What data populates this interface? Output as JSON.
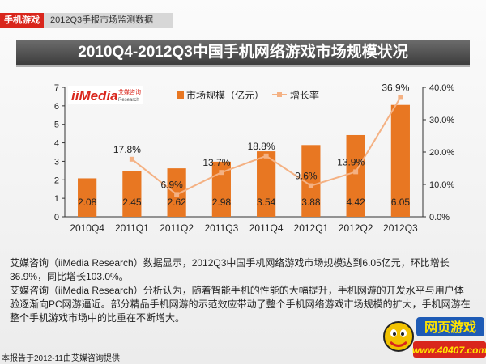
{
  "header": {
    "tag": "手机游戏",
    "subtag": "2012Q3手报市场监测数据"
  },
  "title": "2010Q4-2012Q3中国手机网络游戏市场规模状况",
  "logo": {
    "brand": "iiMedia",
    "cn": "艾媒咨询",
    "en": "Research"
  },
  "chart_data": {
    "type": "bar",
    "categories": [
      "2010Q4",
      "2011Q1",
      "2011Q2",
      "2011Q3",
      "2011Q4",
      "2012Q1",
      "2012Q2",
      "2012Q3"
    ],
    "series": [
      {
        "name": "市场规模（亿元）",
        "type": "bar",
        "color": "#e87722",
        "values": [
          2.08,
          2.45,
          2.62,
          2.98,
          3.54,
          3.88,
          4.42,
          6.05
        ],
        "labels": [
          "2.08",
          "2.45",
          "2.62",
          "2.98",
          "3.54",
          "3.88",
          "4.42",
          "6.05"
        ]
      },
      {
        "name": "增长率",
        "type": "line",
        "color": "#f4b183",
        "values": [
          null,
          17.8,
          6.9,
          13.7,
          18.8,
          9.6,
          13.9,
          36.9
        ],
        "labels": [
          "",
          "17.8%",
          "6.9%",
          "13.7%",
          "18.8%",
          "9.6%",
          "13.9%",
          "36.9%"
        ]
      }
    ],
    "y_left": {
      "ticks": [
        "0",
        "1",
        "2",
        "3",
        "4",
        "5",
        "6",
        "7"
      ],
      "ylim": [
        0,
        7
      ]
    },
    "y_right": {
      "ticks": [
        "0.0%",
        "10.0%",
        "20.0%",
        "30.0%",
        "40.0%"
      ],
      "ylim": [
        0,
        40
      ]
    },
    "legend_position": "top-center",
    "grid": false
  },
  "description": {
    "p1": "艾媒咨询（iiMedia Research）数据显示，2012Q3中国手机网络游戏市场规模达到6.05亿元，环比增长36.9%，同比增长103.0%。",
    "p2": "艾媒咨询（iiMedia Research）分析认为，随着智能手机的性能的大幅提升，手机网游的开发水平与用户体验逐渐向PC网游逼近。部分精品手机网游的示范效应带动了整个手机网络游戏市场规模的扩大，手机网游在整个手机游戏市场中的比重在不断增大。"
  },
  "footer": "本报告于2012-11由艾媒咨询提供",
  "watermark": {
    "line1": "网页游戏",
    "line2": "www.40407.com"
  }
}
